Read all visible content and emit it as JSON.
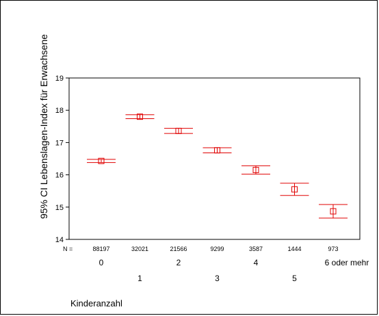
{
  "chart_data": {
    "type": "errorbar",
    "ylabel": "95% CI Lebenslagen-Index für Erwachsene",
    "xlabel": "Kinderanzahl",
    "ylim": [
      14,
      19
    ],
    "yticks": [
      "14",
      "15",
      "16",
      "17",
      "18",
      "19"
    ],
    "n_prefix": "N =",
    "categories": [
      "0",
      "1",
      "2",
      "3",
      "4",
      "5",
      "6 oder mehr"
    ],
    "n": [
      "88197",
      "32021",
      "21566",
      "9299",
      "3587",
      "1444",
      "973"
    ],
    "mean": [
      16.43,
      17.8,
      17.36,
      16.76,
      16.15,
      15.55,
      14.87
    ],
    "lower": [
      16.38,
      17.74,
      17.28,
      16.68,
      16.02,
      15.36,
      14.66
    ],
    "upper": [
      16.48,
      17.86,
      17.44,
      16.84,
      16.28,
      15.74,
      15.08
    ],
    "color": "#e00000"
  }
}
